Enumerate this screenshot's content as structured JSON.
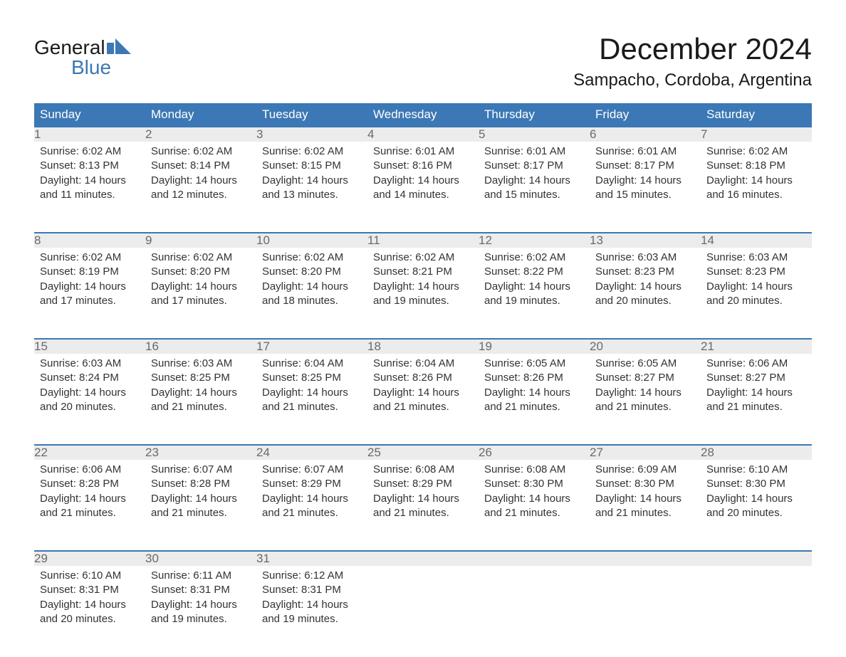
{
  "brand": {
    "line1": "General",
    "line2": "Blue",
    "icon_color": "#3b78b5"
  },
  "title": "December 2024",
  "location": "Sampacho, Cordoba, Argentina",
  "header_bg": "#3b78b5",
  "header_fg": "#ffffff",
  "daynum_bg": "#ececec",
  "daynum_fg": "#6a6a6a",
  "row_border": "#3b78b5",
  "text_color": "#333333",
  "font_family": "Arial",
  "columns": [
    "Sunday",
    "Monday",
    "Tuesday",
    "Wednesday",
    "Thursday",
    "Friday",
    "Saturday"
  ],
  "weeks": [
    [
      {
        "n": "1",
        "sunrise": "6:02 AM",
        "sunset": "8:13 PM",
        "dl1": "14 hours",
        "dl2": "and 11 minutes."
      },
      {
        "n": "2",
        "sunrise": "6:02 AM",
        "sunset": "8:14 PM",
        "dl1": "14 hours",
        "dl2": "and 12 minutes."
      },
      {
        "n": "3",
        "sunrise": "6:02 AM",
        "sunset": "8:15 PM",
        "dl1": "14 hours",
        "dl2": "and 13 minutes."
      },
      {
        "n": "4",
        "sunrise": "6:01 AM",
        "sunset": "8:16 PM",
        "dl1": "14 hours",
        "dl2": "and 14 minutes."
      },
      {
        "n": "5",
        "sunrise": "6:01 AM",
        "sunset": "8:17 PM",
        "dl1": "14 hours",
        "dl2": "and 15 minutes."
      },
      {
        "n": "6",
        "sunrise": "6:01 AM",
        "sunset": "8:17 PM",
        "dl1": "14 hours",
        "dl2": "and 15 minutes."
      },
      {
        "n": "7",
        "sunrise": "6:02 AM",
        "sunset": "8:18 PM",
        "dl1": "14 hours",
        "dl2": "and 16 minutes."
      }
    ],
    [
      {
        "n": "8",
        "sunrise": "6:02 AM",
        "sunset": "8:19 PM",
        "dl1": "14 hours",
        "dl2": "and 17 minutes."
      },
      {
        "n": "9",
        "sunrise": "6:02 AM",
        "sunset": "8:20 PM",
        "dl1": "14 hours",
        "dl2": "and 17 minutes."
      },
      {
        "n": "10",
        "sunrise": "6:02 AM",
        "sunset": "8:20 PM",
        "dl1": "14 hours",
        "dl2": "and 18 minutes."
      },
      {
        "n": "11",
        "sunrise": "6:02 AM",
        "sunset": "8:21 PM",
        "dl1": "14 hours",
        "dl2": "and 19 minutes."
      },
      {
        "n": "12",
        "sunrise": "6:02 AM",
        "sunset": "8:22 PM",
        "dl1": "14 hours",
        "dl2": "and 19 minutes."
      },
      {
        "n": "13",
        "sunrise": "6:03 AM",
        "sunset": "8:23 PM",
        "dl1": "14 hours",
        "dl2": "and 20 minutes."
      },
      {
        "n": "14",
        "sunrise": "6:03 AM",
        "sunset": "8:23 PM",
        "dl1": "14 hours",
        "dl2": "and 20 minutes."
      }
    ],
    [
      {
        "n": "15",
        "sunrise": "6:03 AM",
        "sunset": "8:24 PM",
        "dl1": "14 hours",
        "dl2": "and 20 minutes."
      },
      {
        "n": "16",
        "sunrise": "6:03 AM",
        "sunset": "8:25 PM",
        "dl1": "14 hours",
        "dl2": "and 21 minutes."
      },
      {
        "n": "17",
        "sunrise": "6:04 AM",
        "sunset": "8:25 PM",
        "dl1": "14 hours",
        "dl2": "and 21 minutes."
      },
      {
        "n": "18",
        "sunrise": "6:04 AM",
        "sunset": "8:26 PM",
        "dl1": "14 hours",
        "dl2": "and 21 minutes."
      },
      {
        "n": "19",
        "sunrise": "6:05 AM",
        "sunset": "8:26 PM",
        "dl1": "14 hours",
        "dl2": "and 21 minutes."
      },
      {
        "n": "20",
        "sunrise": "6:05 AM",
        "sunset": "8:27 PM",
        "dl1": "14 hours",
        "dl2": "and 21 minutes."
      },
      {
        "n": "21",
        "sunrise": "6:06 AM",
        "sunset": "8:27 PM",
        "dl1": "14 hours",
        "dl2": "and 21 minutes."
      }
    ],
    [
      {
        "n": "22",
        "sunrise": "6:06 AM",
        "sunset": "8:28 PM",
        "dl1": "14 hours",
        "dl2": "and 21 minutes."
      },
      {
        "n": "23",
        "sunrise": "6:07 AM",
        "sunset": "8:28 PM",
        "dl1": "14 hours",
        "dl2": "and 21 minutes."
      },
      {
        "n": "24",
        "sunrise": "6:07 AM",
        "sunset": "8:29 PM",
        "dl1": "14 hours",
        "dl2": "and 21 minutes."
      },
      {
        "n": "25",
        "sunrise": "6:08 AM",
        "sunset": "8:29 PM",
        "dl1": "14 hours",
        "dl2": "and 21 minutes."
      },
      {
        "n": "26",
        "sunrise": "6:08 AM",
        "sunset": "8:30 PM",
        "dl1": "14 hours",
        "dl2": "and 21 minutes."
      },
      {
        "n": "27",
        "sunrise": "6:09 AM",
        "sunset": "8:30 PM",
        "dl1": "14 hours",
        "dl2": "and 21 minutes."
      },
      {
        "n": "28",
        "sunrise": "6:10 AM",
        "sunset": "8:30 PM",
        "dl1": "14 hours",
        "dl2": "and 20 minutes."
      }
    ],
    [
      {
        "n": "29",
        "sunrise": "6:10 AM",
        "sunset": "8:31 PM",
        "dl1": "14 hours",
        "dl2": "and 20 minutes."
      },
      {
        "n": "30",
        "sunrise": "6:11 AM",
        "sunset": "8:31 PM",
        "dl1": "14 hours",
        "dl2": "and 19 minutes."
      },
      {
        "n": "31",
        "sunrise": "6:12 AM",
        "sunset": "8:31 PM",
        "dl1": "14 hours",
        "dl2": "and 19 minutes."
      },
      null,
      null,
      null,
      null
    ]
  ],
  "labels": {
    "sunrise": "Sunrise:",
    "sunset": "Sunset:",
    "daylight": "Daylight:"
  }
}
